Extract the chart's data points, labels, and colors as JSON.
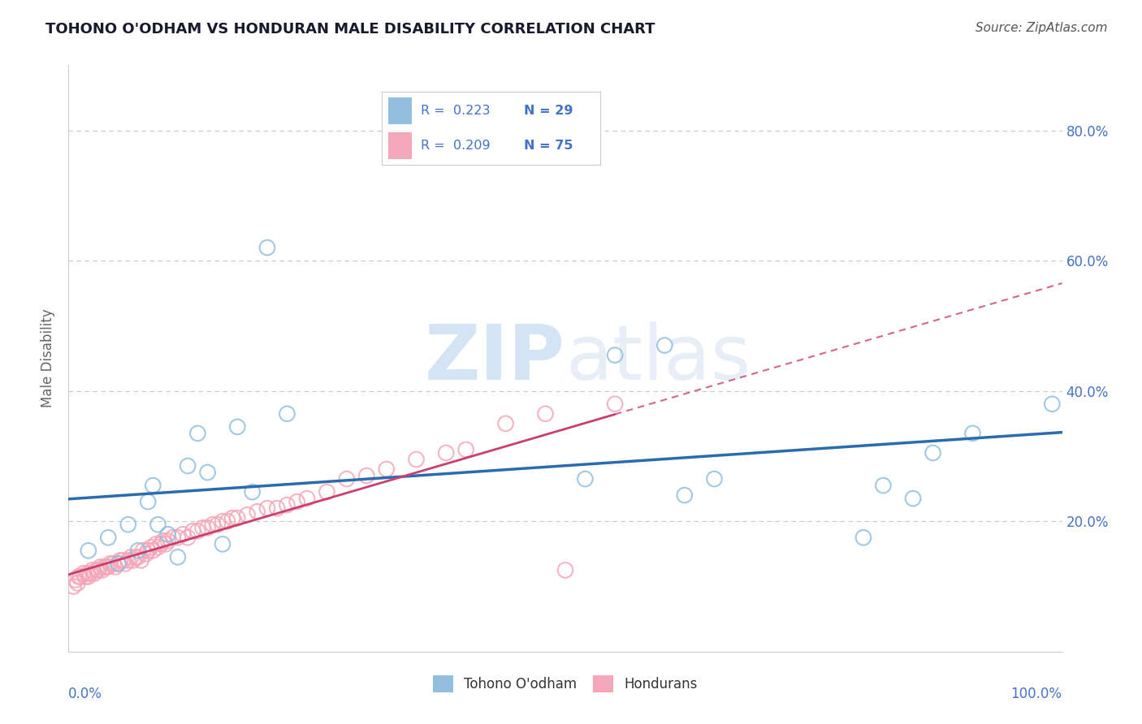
{
  "title": "TOHONO O'ODHAM VS HONDURAN MALE DISABILITY CORRELATION CHART",
  "source": "Source: ZipAtlas.com",
  "ylabel": "Male Disability",
  "y_tick_labels": [
    "20.0%",
    "40.0%",
    "60.0%",
    "80.0%"
  ],
  "y_tick_values": [
    0.2,
    0.4,
    0.6,
    0.8
  ],
  "xlim": [
    0.0,
    1.0
  ],
  "ylim": [
    0.0,
    0.9
  ],
  "blue_color": "#92bfde",
  "pink_color": "#f4a7b9",
  "blue_line_color": "#2b6cb0",
  "pink_line_color": "#c94070",
  "axis_label_color": "#4472c4",
  "watermark_color": "#d4e4f5",
  "background_color": "#ffffff",
  "grid_color": "#c8c8c8",
  "tohono_x": [
    0.02,
    0.04,
    0.05,
    0.06,
    0.07,
    0.08,
    0.085,
    0.09,
    0.1,
    0.11,
    0.12,
    0.13,
    0.14,
    0.155,
    0.17,
    0.185,
    0.2,
    0.22,
    0.52,
    0.55,
    0.6,
    0.62,
    0.65,
    0.8,
    0.82,
    0.85,
    0.87,
    0.91,
    0.99
  ],
  "tohono_y": [
    0.155,
    0.175,
    0.135,
    0.195,
    0.155,
    0.23,
    0.255,
    0.195,
    0.18,
    0.145,
    0.285,
    0.335,
    0.275,
    0.165,
    0.345,
    0.245,
    0.62,
    0.365,
    0.265,
    0.455,
    0.47,
    0.24,
    0.265,
    0.175,
    0.255,
    0.235,
    0.305,
    0.335,
    0.38
  ],
  "honduran_x": [
    0.005,
    0.007,
    0.009,
    0.01,
    0.012,
    0.015,
    0.017,
    0.019,
    0.02,
    0.022,
    0.024,
    0.026,
    0.028,
    0.03,
    0.032,
    0.034,
    0.036,
    0.038,
    0.04,
    0.042,
    0.045,
    0.047,
    0.05,
    0.052,
    0.055,
    0.057,
    0.06,
    0.063,
    0.065,
    0.068,
    0.07,
    0.073,
    0.075,
    0.078,
    0.08,
    0.083,
    0.085,
    0.088,
    0.09,
    0.093,
    0.095,
    0.098,
    0.1,
    0.105,
    0.11,
    0.115,
    0.12,
    0.125,
    0.13,
    0.135,
    0.14,
    0.145,
    0.15,
    0.155,
    0.16,
    0.165,
    0.17,
    0.18,
    0.19,
    0.2,
    0.21,
    0.22,
    0.23,
    0.24,
    0.26,
    0.28,
    0.3,
    0.32,
    0.35,
    0.38,
    0.4,
    0.44,
    0.48,
    0.55,
    0.5
  ],
  "honduran_y": [
    0.1,
    0.11,
    0.105,
    0.115,
    0.115,
    0.12,
    0.115,
    0.12,
    0.115,
    0.12,
    0.125,
    0.12,
    0.125,
    0.125,
    0.13,
    0.125,
    0.13,
    0.13,
    0.13,
    0.135,
    0.135,
    0.13,
    0.135,
    0.14,
    0.14,
    0.135,
    0.14,
    0.145,
    0.14,
    0.145,
    0.145,
    0.14,
    0.155,
    0.15,
    0.155,
    0.16,
    0.155,
    0.165,
    0.16,
    0.165,
    0.17,
    0.165,
    0.17,
    0.175,
    0.175,
    0.18,
    0.175,
    0.185,
    0.185,
    0.19,
    0.19,
    0.195,
    0.195,
    0.2,
    0.2,
    0.205,
    0.205,
    0.21,
    0.215,
    0.22,
    0.22,
    0.225,
    0.23,
    0.235,
    0.245,
    0.265,
    0.27,
    0.28,
    0.295,
    0.305,
    0.31,
    0.35,
    0.365,
    0.38,
    0.125
  ]
}
